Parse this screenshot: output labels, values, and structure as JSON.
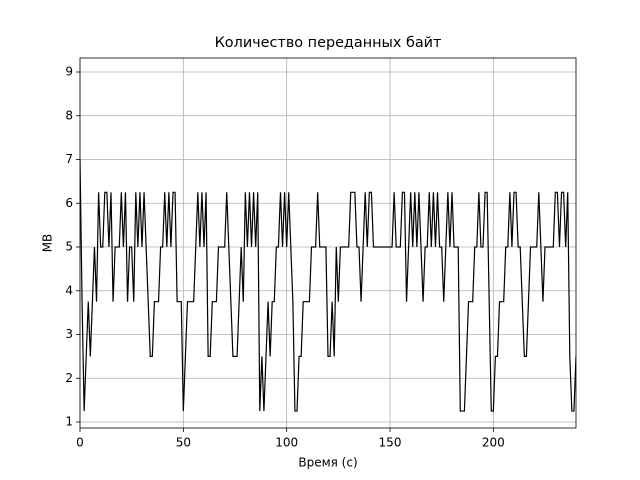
{
  "chart_data": {
    "type": "line",
    "title": "Количество переданных байт",
    "xlabel": "Время (с)",
    "ylabel": "MB",
    "color": "#000000",
    "grid": true,
    "xlim": [
      0,
      240
    ],
    "ylim": [
      0.863,
      9.32
    ],
    "xticks": [
      0,
      50,
      100,
      150,
      200
    ],
    "yticks": [
      1,
      2,
      3,
      4,
      5,
      6,
      7,
      8,
      9
    ],
    "x": [
      0,
      1,
      2,
      3,
      4,
      5,
      6,
      7,
      8,
      9,
      10,
      11,
      12,
      13,
      14,
      15,
      16,
      17,
      18,
      19,
      20,
      21,
      22,
      23,
      24,
      25,
      26,
      27,
      28,
      29,
      30,
      31,
      32,
      33,
      34,
      35,
      36,
      37,
      38,
      39,
      40,
      41,
      42,
      43,
      44,
      45,
      46,
      47,
      48,
      49,
      50,
      51,
      52,
      53,
      54,
      55,
      56,
      57,
      58,
      59,
      60,
      61,
      62,
      63,
      64,
      65,
      66,
      67,
      68,
      69,
      70,
      71,
      72,
      73,
      74,
      75,
      76,
      77,
      78,
      79,
      80,
      81,
      82,
      83,
      84,
      85,
      86,
      87,
      88,
      89,
      90,
      91,
      92,
      93,
      94,
      95,
      96,
      97,
      98,
      99,
      100,
      101,
      102,
      103,
      104,
      105,
      106,
      107,
      108,
      109,
      110,
      111,
      112,
      113,
      114,
      115,
      116,
      117,
      118,
      119,
      120,
      121,
      122,
      123,
      124,
      125,
      126,
      127,
      128,
      129,
      130,
      131,
      132,
      133,
      134,
      135,
      136,
      137,
      138,
      139,
      140,
      141,
      142,
      143,
      144,
      145,
      146,
      147,
      148,
      149,
      150,
      151,
      152,
      153,
      154,
      155,
      156,
      157,
      158,
      159,
      160,
      161,
      162,
      163,
      164,
      165,
      166,
      167,
      168,
      169,
      170,
      171,
      172,
      173,
      174,
      175,
      176,
      177,
      178,
      179,
      180,
      181,
      182,
      183,
      184,
      185,
      186,
      187,
      188,
      189,
      190,
      191,
      192,
      193,
      194,
      195,
      196,
      197,
      198,
      199,
      200,
      201,
      202,
      203,
      204,
      205,
      206,
      207,
      208,
      209,
      210,
      211,
      212,
      213,
      214,
      215,
      216,
      217,
      218,
      219,
      220,
      221,
      222,
      223,
      224,
      225,
      226,
      227,
      228,
      229,
      230,
      231,
      232,
      233,
      234,
      235,
      236,
      237,
      238,
      239,
      240
    ],
    "values": [
      7,
      3.75,
      1.25,
      2.5,
      3.75,
      2.5,
      3.75,
      5,
      3.75,
      6.25,
      5,
      5,
      6.25,
      6.25,
      5,
      6.25,
      3.75,
      5,
      5,
      5,
      6.25,
      5,
      6.25,
      3.75,
      5,
      5,
      3.75,
      6.25,
      5,
      6.25,
      5,
      6.25,
      5,
      3.75,
      2.5,
      2.5,
      3.75,
      3.75,
      3.75,
      5,
      5,
      6.25,
      5,
      6.25,
      5,
      6.25,
      6.25,
      3.75,
      3.75,
      3.75,
      1.25,
      2.5,
      3.75,
      3.75,
      3.75,
      3.75,
      5,
      6.25,
      5,
      6.25,
      5,
      6.25,
      2.5,
      2.5,
      3.75,
      3.75,
      3.75,
      5,
      5,
      5,
      5,
      6.25,
      5,
      3.75,
      2.5,
      2.5,
      2.5,
      3.75,
      5,
      3.75,
      6.25,
      5,
      6.25,
      5,
      6.25,
      5,
      6.25,
      1.25,
      2.5,
      1.25,
      2.5,
      3.75,
      2.5,
      3.75,
      3.75,
      5,
      5,
      6.25,
      5,
      6.25,
      5,
      6.25,
      5,
      3.75,
      1.25,
      1.25,
      2.5,
      2.5,
      3.75,
      3.75,
      3.75,
      3.75,
      5,
      5,
      5,
      6.25,
      5,
      5,
      5,
      5,
      2.5,
      2.5,
      3.75,
      2.5,
      5,
      3.75,
      5,
      5,
      5,
      5,
      5,
      6.25,
      6.25,
      6.25,
      5,
      5,
      3.75,
      5,
      6.25,
      5,
      6.25,
      6.25,
      5,
      5,
      5,
      5,
      5,
      5,
      5,
      5,
      5,
      5,
      6.25,
      5,
      5,
      5,
      6.25,
      6.25,
      3.75,
      5,
      6.25,
      5,
      6.25,
      5,
      6.25,
      5,
      3.75,
      5,
      5,
      6.25,
      5,
      6.25,
      5,
      6.25,
      5,
      5,
      3.75,
      5,
      6.25,
      5,
      6.25,
      5,
      5,
      5,
      1.25,
      1.25,
      1.25,
      2.5,
      3.75,
      3.75,
      3.75,
      5,
      5,
      6.25,
      5,
      5,
      6.25,
      6.25,
      3.75,
      1.25,
      1.25,
      2.5,
      2.5,
      3.75,
      3.75,
      3.75,
      5,
      5,
      6.25,
      5,
      6.25,
      6.25,
      5,
      5,
      3.75,
      2.5,
      2.5,
      3.75,
      5,
      5,
      5,
      5,
      6.25,
      5,
      3.75,
      5,
      5,
      5,
      5,
      5,
      6.25,
      6.25,
      5,
      6.25,
      6.25,
      5,
      6.25,
      2.5,
      1.25,
      1.25,
      2.5
    ]
  }
}
